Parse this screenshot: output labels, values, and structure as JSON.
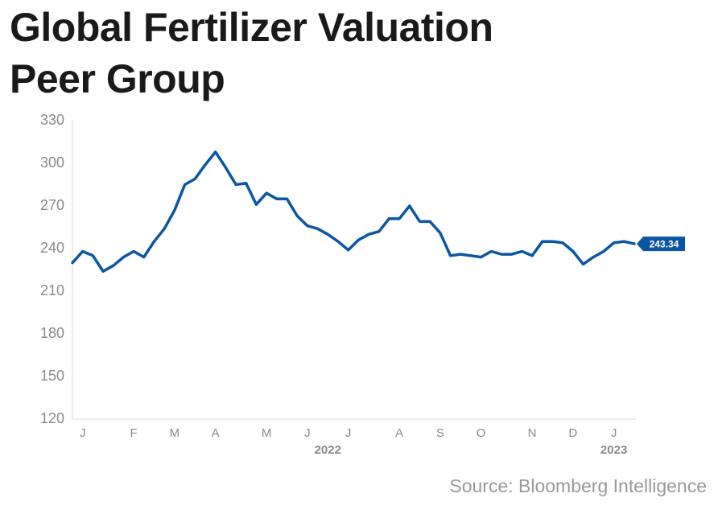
{
  "chart_data": {
    "type": "line",
    "title": "Global Fertilizer Valuation Peer Group",
    "categories": [
      null,
      "J",
      null,
      null,
      null,
      null,
      "F",
      null,
      null,
      null,
      "M",
      null,
      null,
      null,
      "A",
      null,
      null,
      null,
      null,
      "M",
      null,
      null,
      null,
      "J",
      null,
      null,
      null,
      "J",
      null,
      null,
      null,
      null,
      "A",
      null,
      null,
      null,
      "S",
      null,
      null,
      null,
      "O",
      null,
      null,
      null,
      null,
      "N",
      null,
      null,
      null,
      "D",
      null,
      null,
      null,
      "J",
      null,
      null
    ],
    "values": [
      230,
      238,
      235,
      224,
      228,
      234,
      238,
      234,
      245,
      254,
      267,
      285,
      289,
      299,
      308,
      297,
      285,
      286,
      271,
      279,
      275,
      275,
      263,
      256,
      254,
      250,
      245,
      239,
      246,
      250,
      252,
      261,
      261,
      270,
      259,
      259,
      251,
      235,
      236,
      235,
      234,
      238,
      236,
      236,
      238,
      235,
      245,
      245,
      244,
      238,
      229,
      234,
      238,
      244,
      245,
      243.34
    ],
    "color": "#0b56a2",
    "year_labels": [
      "2022",
      "2023"
    ],
    "ylim": [
      120,
      330
    ],
    "yticks": [
      120,
      150,
      180,
      210,
      240,
      270,
      300,
      330
    ],
    "source": "Source: Bloomberg Intelligence"
  }
}
